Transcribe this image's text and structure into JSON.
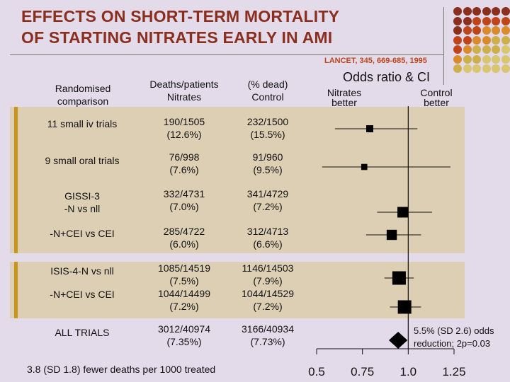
{
  "title": {
    "line1": "EFFECTS ON SHORT-TERM MORTALITY",
    "line2": "OF STARTING NITRATES EARLY IN AMI"
  },
  "citation": "LANCET, 345, 669-685, 1995",
  "headers": {
    "col1": [
      "Randomised",
      "comparison"
    ],
    "col2": [
      "Deaths/patients",
      "Nitrates"
    ],
    "col3": [
      "(% dead)",
      "Control"
    ],
    "or_title": "Odds ratio & CI",
    "left_label": [
      "Nitrates",
      "better"
    ],
    "right_label": [
      "Control",
      "better"
    ]
  },
  "rows": [
    {
      "label": [
        "11 small iv trials"
      ],
      "nitrates": [
        "190/1505",
        "(12.6%)"
      ],
      "control": [
        "232/1500",
        "(15.5%)"
      ]
    },
    {
      "label": [
        "9 small oral trials"
      ],
      "nitrates": [
        "76/998",
        "(7.6%)"
      ],
      "control": [
        "91/960",
        "(9.5%)"
      ]
    },
    {
      "label": [
        "GISSI-3",
        "-N vs nll"
      ],
      "nitrates": [
        "332/4731",
        "(7.0%)"
      ],
      "control": [
        "341/4729",
        "(7.2%)"
      ]
    },
    {
      "label": [
        "-N+CEI vs CEI"
      ],
      "nitrates": [
        "285/4722",
        "(6.0%)"
      ],
      "control": [
        "312/4713",
        "(6.6%)"
      ]
    },
    {
      "label": [
        "ISIS-4-N vs nll"
      ],
      "nitrates": [
        "1085/14519",
        "(7.5%)"
      ],
      "control": [
        "1146/14503",
        "(7.9%)"
      ]
    },
    {
      "label": [
        "-N+CEI vs CEI"
      ],
      "nitrates": [
        "1044/14499",
        "(7.2%)"
      ],
      "control": [
        "1044/14529",
        "(7.2%)"
      ]
    },
    {
      "label": [
        "ALL TRIALS"
      ],
      "nitrates": [
        "3012/40974",
        "(7.35%)"
      ],
      "control": [
        "3166/40934",
        "(7.73%)"
      ]
    }
  ],
  "footnote": "3.8 (SD 1.8) fewer deaths per 1000 treated",
  "summary_note": "5.5% (SD 2.6) odds reduction; 2p=0.03",
  "colors": {
    "title": "#8a2e1e",
    "citation": "#c0441a",
    "band": "#dccfb4",
    "accent": "#c8961e",
    "background": "#e3dbea"
  },
  "chart_data": {
    "type": "forest",
    "x_scale": "linear",
    "xlim": [
      0.5,
      1.25
    ],
    "xticks": [
      0.5,
      0.75,
      1.0,
      1.25
    ],
    "xtick_labels": [
      "0.5",
      "0.75",
      "1.0",
      "1.25"
    ],
    "reference_line": 1.0,
    "points": [
      {
        "or": 0.79,
        "lo": 0.6,
        "hi": 1.05,
        "weight": 0.2
      },
      {
        "or": 0.76,
        "lo": 0.53,
        "hi": 1.23,
        "weight": 0.13
      },
      {
        "or": 0.97,
        "lo": 0.83,
        "hi": 1.13,
        "weight": 0.45
      },
      {
        "or": 0.91,
        "lo": 0.77,
        "hi": 1.07,
        "weight": 0.42
      },
      {
        "or": 0.95,
        "lo": 0.87,
        "hi": 1.03,
        "weight": 0.65
      },
      {
        "or": 0.98,
        "lo": 0.9,
        "hi": 1.07,
        "weight": 0.65
      }
    ],
    "summary": {
      "or": 0.945,
      "lo": 0.894,
      "hi": 0.996
    }
  }
}
